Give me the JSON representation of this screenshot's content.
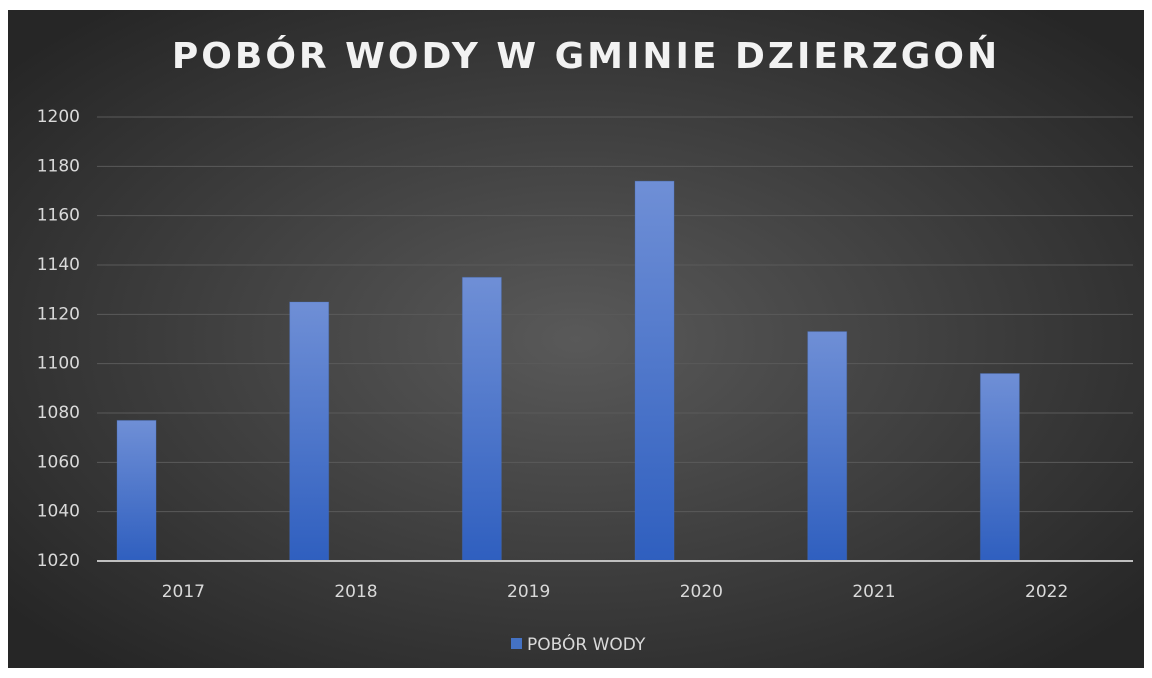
{
  "chart_data": {
    "type": "bar",
    "title": "POBÓR WODY W GMINIE DZIERZGOŃ",
    "categories": [
      "2017",
      "2018",
      "2019",
      "2020",
      "2021",
      "2022"
    ],
    "series": [
      {
        "name": "POBÓR WODY",
        "color": "#4472c4",
        "values": [
          1077,
          1125,
          1135,
          1174,
          1113,
          1096
        ]
      }
    ],
    "ylim": [
      1020,
      1200
    ],
    "yticks": [
      1020,
      1040,
      1060,
      1080,
      1100,
      1120,
      1140,
      1160,
      1180,
      1200
    ],
    "grid": true,
    "legend": "bottom"
  }
}
